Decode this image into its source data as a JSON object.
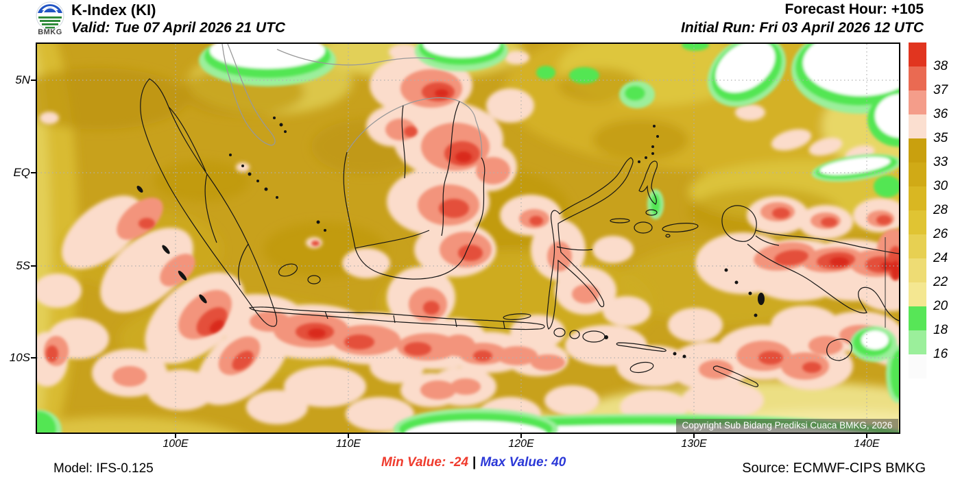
{
  "header": {
    "logo_text": "BMKG",
    "title": "K-Index (KI)",
    "valid": "Valid: Tue 07 April 2026 21 UTC",
    "forecast_hour": "Forecast Hour: +105",
    "initial_run": "Initial Run: Fri 03 April 2026 12 UTC"
  },
  "map": {
    "y_tick_labels": [
      "5N",
      "EQ",
      "5S",
      "10S"
    ],
    "x_tick_labels": [
      "100E",
      "110E",
      "120E",
      "130E",
      "140E"
    ],
    "copyright": "Copyright Sub Bidang Prediksi Cuaca BMKG, 2026"
  },
  "colorbar": {
    "labels": [
      "38",
      "37",
      "36",
      "35",
      "33",
      "30",
      "28",
      "26",
      "24",
      "22",
      "20",
      "18",
      "16"
    ],
    "segment_colors_top_to_bottom": [
      "#e1351f",
      "#ea6a52",
      "#f49d8a",
      "#fbdfd0",
      "#c9a00e",
      "#d0aa16",
      "#d9b722",
      "#e0c433",
      "#e7d052",
      "#eedc74",
      "#f4e791",
      "#57e657",
      "#9bef9b",
      "#fbfbfb"
    ]
  },
  "footer": {
    "model": "Model: IFS-0.125",
    "min_label": "Min Value: -24",
    "separator": "|",
    "max_label": "Max Value:  40",
    "source": "Source: ECMWF-CIPS BMKG"
  },
  "chart_data": {
    "type": "heatmap",
    "title": "K-Index (KI)",
    "valid_time": "Tue 07 April 2026 21 UTC",
    "initial_run": "Fri 03 April 2026 12 UTC",
    "forecast_hour": "+105",
    "model": "IFS-0.125",
    "source": "ECMWF-CIPS BMKG",
    "min_value": -24,
    "max_value": 40,
    "legend_levels": [
      16,
      18,
      20,
      22,
      24,
      26,
      28,
      30,
      33,
      35,
      36,
      37,
      38
    ],
    "legend_colors_low_to_high": [
      "#fbfbfb",
      "#9bef9b",
      "#57e657",
      "#f4e791",
      "#eedc74",
      "#e7d052",
      "#e0c433",
      "#d9b722",
      "#d0aa16",
      "#c9a00e",
      "#fbdfd0",
      "#f49d8a",
      "#ea6a52",
      "#e1351f"
    ],
    "x_axis_ticks": [
      "100E",
      "110E",
      "120E",
      "130E",
      "140E"
    ],
    "y_axis_ticks": [
      "5N",
      "EQ",
      "5S",
      "10S"
    ],
    "region": "Indonesia",
    "grid": "dotted 5-degree graticule"
  }
}
